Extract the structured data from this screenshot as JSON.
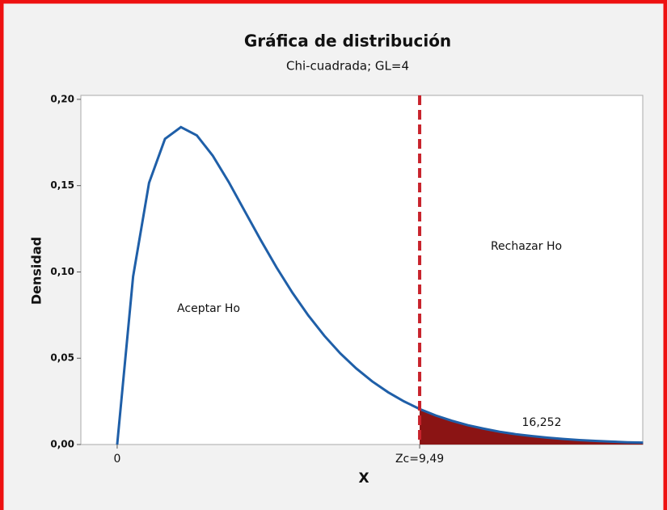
{
  "chart_data": {
    "type": "density",
    "title": "Gráfica de distribución",
    "subtitle": "Chi-cuadrada; GL=4",
    "x_label": "X",
    "y_label": "Densidad",
    "x": [
      0,
      0.5,
      1,
      1.5,
      2,
      2.5,
      3,
      3.5,
      4,
      4.5,
      5,
      5.5,
      6,
      6.5,
      7,
      7.5,
      8,
      8.5,
      9,
      9.5,
      10,
      10.5,
      11,
      11.5,
      12,
      12.5,
      13,
      13.5,
      14,
      14.5,
      15,
      15.5,
      16,
      16.5
    ],
    "values": [
      0,
      0.0974,
      0.1516,
      0.1771,
      0.1839,
      0.1791,
      0.1673,
      0.1521,
      0.1353,
      0.1186,
      0.1026,
      0.0879,
      0.0747,
      0.063,
      0.0528,
      0.0441,
      0.0366,
      0.0303,
      0.025,
      0.0205,
      0.0168,
      0.0138,
      0.0112,
      0.0092,
      0.0074,
      0.006,
      0.0049,
      0.004,
      0.0032,
      0.0026,
      0.0021,
      0.0017,
      0.0013,
      0.0011
    ],
    "color": "#1f5fa8",
    "critical_value": 9.49,
    "shade_color": "#8b1414",
    "critical_color": "#c8232c",
    "xlim": [
      -1.14,
      16.49
    ],
    "ylim": [
      0,
      0.2023
    ],
    "xticks": [
      0,
      {
        "value": 9.49,
        "label": "Zc=9,49"
      }
    ],
    "yticks": [
      {
        "value": 0,
        "label": "0,00"
      },
      {
        "value": 0.05,
        "label": "0,05"
      },
      {
        "value": 0.1,
        "label": "0,10"
      },
      {
        "value": 0.15,
        "label": "0,15"
      },
      {
        "value": 0.2,
        "label": "0,20"
      }
    ],
    "annotations": [
      "Aceptar Ho",
      "Rechazar Ho",
      "16,252"
    ]
  }
}
